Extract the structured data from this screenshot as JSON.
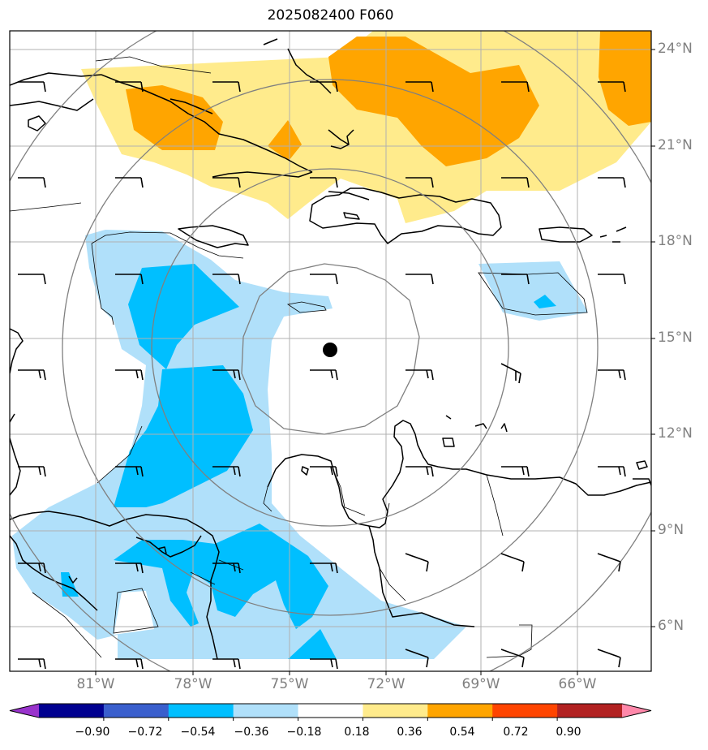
{
  "title": "2025082400 F060",
  "lat_labels": [
    "24°N",
    "21°N",
    "18°N",
    "15°N",
    "12°N",
    "9°N",
    "6°N"
  ],
  "lon_labels": [
    "81°W",
    "78°W",
    "75°W",
    "72°W",
    "69°W",
    "66°W"
  ],
  "colorbar": {
    "labels": [
      "−0.90",
      "−0.72",
      "−0.54",
      "−0.36",
      "−0.18",
      "0.18",
      "0.36",
      "0.54",
      "0.72",
      "0.90"
    ],
    "colors": [
      "#9933cc",
      "#000090",
      "#3a5fcd",
      "#00bfff",
      "#b0e0fa",
      "#ffffff",
      "#ffeb8c",
      "#ffa500",
      "#ff4500",
      "#b22222",
      "#ff88aa"
    ]
  },
  "storm_center": {
    "lat": 14.6,
    "lon": "73.6°W"
  },
  "colors": {
    "grid": "#b0b0b0",
    "range_ring": "#808080",
    "coast": "#000000"
  }
}
